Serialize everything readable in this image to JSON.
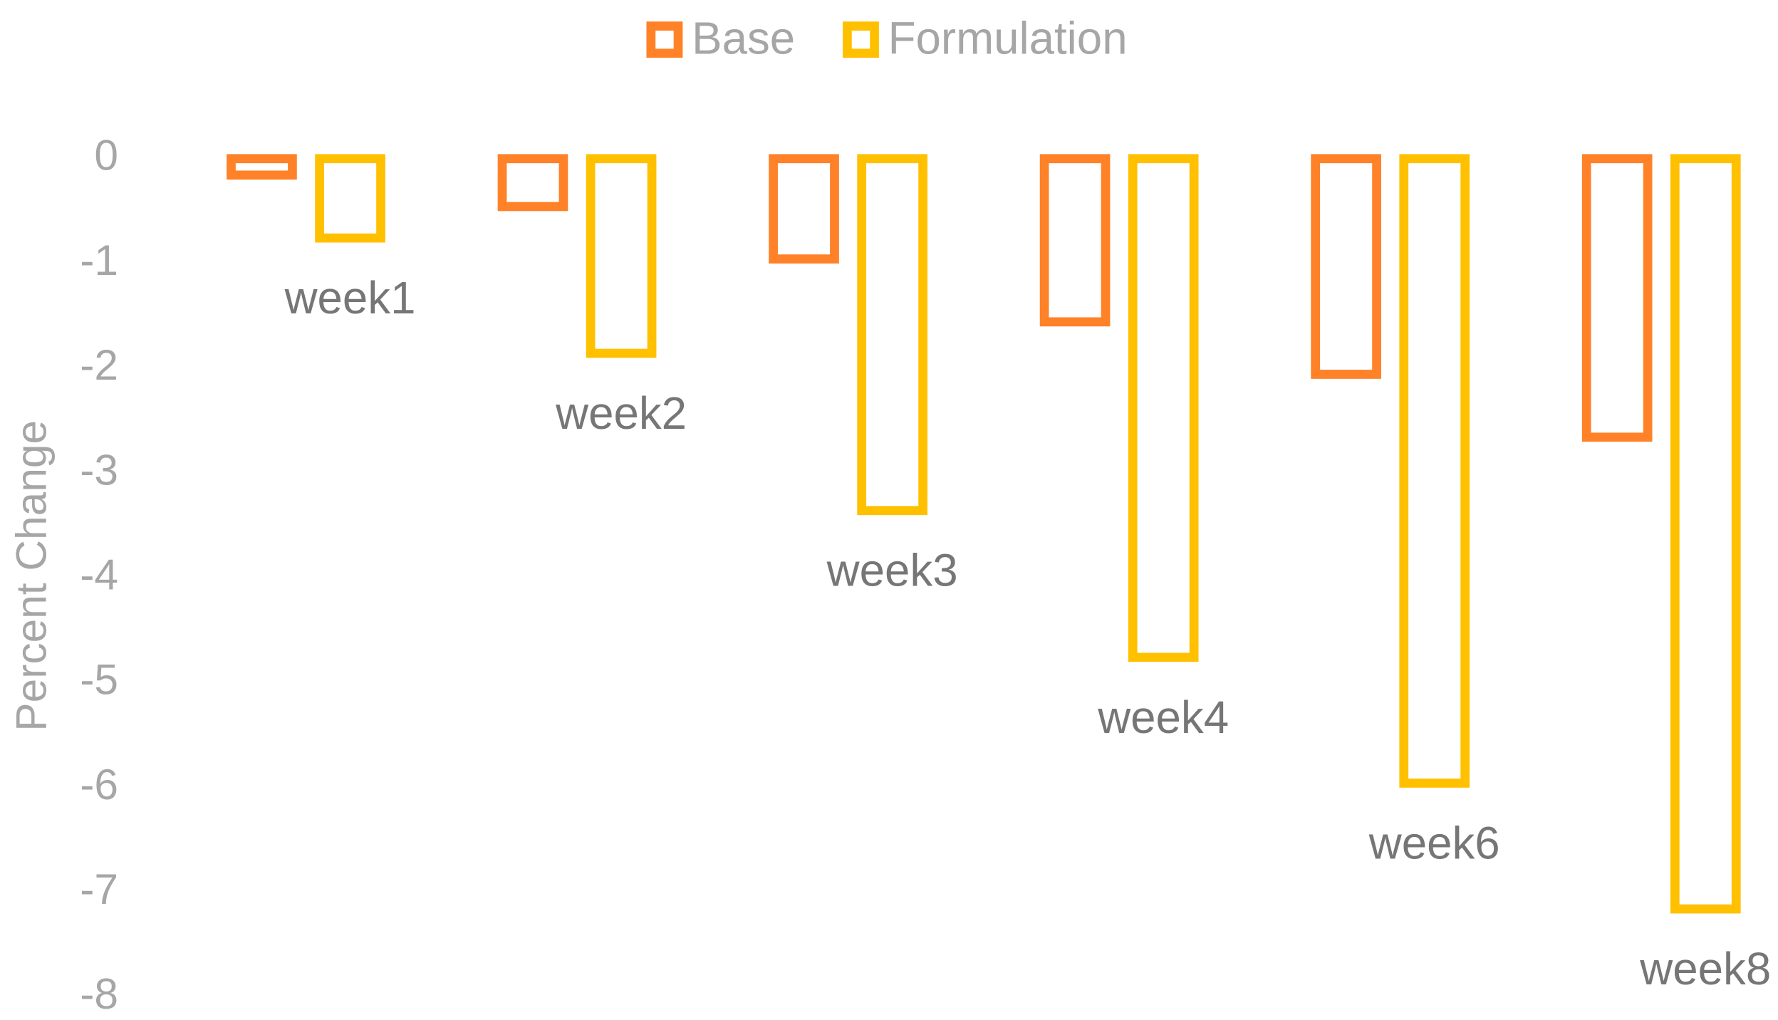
{
  "chart_data": {
    "type": "bar",
    "y_label": "Percent Change",
    "categories": [
      "week1",
      "week2",
      "week3",
      "week4",
      "week6",
      "week8"
    ],
    "series": [
      {
        "name": "Base",
        "color": "#ff8128",
        "values": [
          -0.2,
          -0.5,
          -1.0,
          -1.6,
          -2.1,
          -2.7
        ]
      },
      {
        "name": "Formulation",
        "color": "#ffc000",
        "values": [
          -0.8,
          -1.9,
          -3.4,
          -4.8,
          -6.0,
          -7.2
        ]
      }
    ],
    "ylim": [
      -8,
      0
    ],
    "yticks": [
      0,
      -1,
      -2,
      -3,
      -4,
      -5,
      -6,
      -7,
      -8
    ],
    "legend": "top",
    "bar_style": "outline"
  }
}
